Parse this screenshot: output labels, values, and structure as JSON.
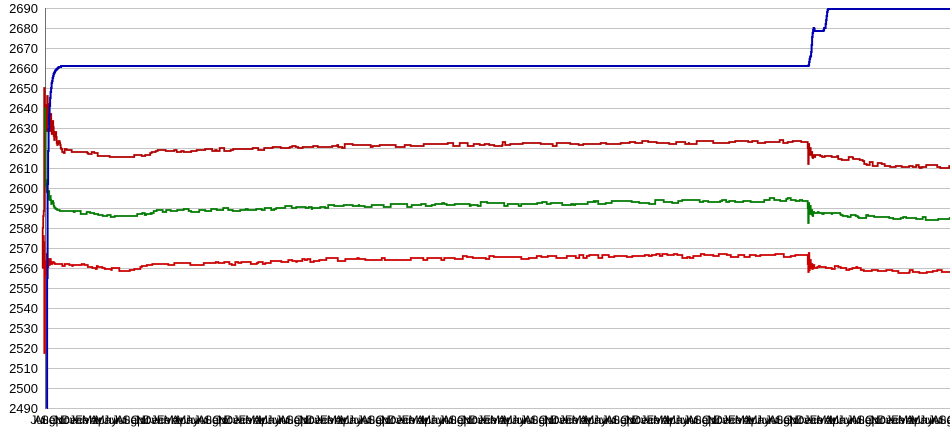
{
  "chart_data": {
    "type": "line",
    "title": "",
    "legend": "none",
    "grid": "horizontal-only",
    "grid_color": "#c4c4c4",
    "axis_color": "#707070",
    "background_color": "#ffffff",
    "y_axis": {
      "min": 2490,
      "max": 2690,
      "step": 10,
      "ticks": [
        "2490",
        "2500",
        "2510",
        "2520",
        "2530",
        "2540",
        "2550",
        "2560",
        "2570",
        "2580",
        "2590",
        "2600",
        "2610",
        "2620",
        "2630",
        "2640",
        "2650",
        "2660",
        "2670",
        "2680",
        "2690"
      ]
    },
    "x_axis": {
      "month_cycle": [
        "Jul",
        "Aug",
        "Sep",
        "Oct",
        "Nov",
        "Dec",
        "Jan",
        "Feb",
        "Mar",
        "Apr",
        "May",
        "Jun"
      ],
      "start_month": "Jul",
      "label_count": 136,
      "first_center_x": 38,
      "spacing_px": 6.8,
      "style": "densely overlapping monthly labels"
    },
    "series": [
      {
        "name": "dark-red-line",
        "color": "#b00000",
        "stroke_width": 1.8,
        "jitter": 0.9,
        "jitter_from": 62,
        "seed": 7,
        "keypoints": [
          [
            42.2,
            2560
          ],
          [
            42.35,
            2693
          ],
          [
            42.55,
            2490
          ],
          [
            42.8,
            2640
          ],
          [
            43.1,
            2545
          ],
          [
            43.4,
            2668
          ],
          [
            43.8,
            2562
          ],
          [
            44.2,
            2650
          ],
          [
            44.6,
            2585
          ],
          [
            45,
            2655
          ],
          [
            45.5,
            2615
          ],
          [
            46,
            2650
          ],
          [
            46.6,
            2625
          ],
          [
            47.2,
            2646
          ],
          [
            48,
            2628
          ],
          [
            48.8,
            2644
          ],
          [
            49.6,
            2627
          ],
          [
            50.5,
            2640
          ],
          [
            51.5,
            2626
          ],
          [
            52.8,
            2634
          ],
          [
            54,
            2623
          ],
          [
            55.5,
            2629
          ],
          [
            57,
            2621
          ],
          [
            59,
            2624
          ],
          [
            61,
            2619.5
          ],
          [
            64,
            2618.5
          ],
          [
            75,
            2618
          ],
          [
            92,
            2617.5
          ],
          [
            100,
            2616.5
          ],
          [
            112,
            2616
          ],
          [
            128,
            2616
          ],
          [
            140,
            2616.5
          ],
          [
            150,
            2617.5
          ],
          [
            158,
            2618.5
          ],
          [
            175,
            2618.5
          ],
          [
            210,
            2619
          ],
          [
            255,
            2619.5
          ],
          [
            300,
            2620
          ],
          [
            345,
            2621
          ],
          [
            400,
            2621.3
          ],
          [
            455,
            2621.7
          ],
          [
            510,
            2622
          ],
          [
            560,
            2622
          ],
          [
            618,
            2622.5
          ],
          [
            680,
            2622.5
          ],
          [
            735,
            2623
          ],
          [
            806,
            2623
          ],
          [
            807.5,
            2623
          ],
          [
            808.2,
            2612
          ],
          [
            808.8,
            2624
          ],
          [
            809.4,
            2613
          ],
          [
            810,
            2622
          ],
          [
            810.8,
            2616
          ],
          [
            811.6,
            2619
          ],
          [
            812.4,
            2615
          ],
          [
            813.5,
            2617
          ],
          [
            815,
            2615.5
          ],
          [
            818,
            2616
          ],
          [
            822,
            2615
          ],
          [
            828,
            2615.5
          ],
          [
            833,
            2614.8
          ],
          [
            838,
            2615.2
          ],
          [
            845,
            2614.5
          ],
          [
            852,
            2614.7
          ],
          [
            858,
            2614
          ],
          [
            864,
            2613
          ],
          [
            868,
            2612.2
          ],
          [
            872,
            2612
          ],
          [
            880,
            2611.8
          ],
          [
            890,
            2611.3
          ],
          [
            900,
            2611
          ],
          [
            910,
            2611.2
          ],
          [
            920,
            2610.8
          ],
          [
            935,
            2611
          ],
          [
            950,
            2610.7
          ]
        ]
      },
      {
        "name": "red-line",
        "color": "#cc0000",
        "stroke_width": 1.8,
        "jitter": 0.9,
        "jitter_from": 62,
        "seed": 23,
        "keypoints": [
          [
            43.3,
            2576
          ],
          [
            43.5,
            2490
          ],
          [
            43.8,
            2573
          ],
          [
            44.2,
            2500
          ],
          [
            44.6,
            2571
          ],
          [
            45.1,
            2548
          ],
          [
            45.6,
            2568
          ],
          [
            46.2,
            2555
          ],
          [
            46.8,
            2567
          ],
          [
            47.6,
            2559
          ],
          [
            48.4,
            2565.5
          ],
          [
            49.2,
            2561
          ],
          [
            50.2,
            2564.5
          ],
          [
            51.4,
            2561.5
          ],
          [
            53,
            2563
          ],
          [
            55,
            2562
          ],
          [
            58,
            2562
          ],
          [
            61,
            2561.8
          ],
          [
            75,
            2561.5
          ],
          [
            92,
            2561
          ],
          [
            100,
            2559.8
          ],
          [
            112,
            2559.3
          ],
          [
            128,
            2559.3
          ],
          [
            140,
            2559.8
          ],
          [
            150,
            2560.8
          ],
          [
            158,
            2561.8
          ],
          [
            175,
            2561.8
          ],
          [
            210,
            2562.2
          ],
          [
            255,
            2562.8
          ],
          [
            300,
            2563.8
          ],
          [
            345,
            2564.3
          ],
          [
            400,
            2564.7
          ],
          [
            455,
            2565
          ],
          [
            510,
            2565.3
          ],
          [
            560,
            2565.5
          ],
          [
            618,
            2566
          ],
          [
            680,
            2566
          ],
          [
            735,
            2566.3
          ],
          [
            806,
            2566.5
          ],
          [
            807.5,
            2566.5
          ],
          [
            808.2,
            2556
          ],
          [
            808.8,
            2567.5
          ],
          [
            809.4,
            2557
          ],
          [
            810,
            2566
          ],
          [
            810.8,
            2560
          ],
          [
            811.6,
            2563
          ],
          [
            812.4,
            2559
          ],
          [
            813.5,
            2561.5
          ],
          [
            815,
            2560.8
          ],
          [
            818,
            2561.3
          ],
          [
            822,
            2560.3
          ],
          [
            828,
            2560.8
          ],
          [
            833,
            2560.2
          ],
          [
            838,
            2560.5
          ],
          [
            845,
            2559.8
          ],
          [
            852,
            2560
          ],
          [
            858,
            2559.5
          ],
          [
            864,
            2559.2
          ],
          [
            868,
            2559
          ],
          [
            872,
            2558.8
          ],
          [
            880,
            2558.8
          ],
          [
            890,
            2558.5
          ],
          [
            900,
            2558.3
          ],
          [
            910,
            2558.6
          ],
          [
            920,
            2558.4
          ],
          [
            935,
            2558.7
          ],
          [
            950,
            2558.5
          ]
        ]
      },
      {
        "name": "green-line",
        "color": "#007a00",
        "stroke_width": 1.8,
        "jitter": 0.9,
        "jitter_from": 62,
        "seed": 11,
        "keypoints": [
          [
            44.7,
            2640
          ],
          [
            44.9,
            2490
          ],
          [
            45.2,
            2628
          ],
          [
            45.6,
            2600
          ],
          [
            46.1,
            2606
          ],
          [
            46.6,
            2597
          ],
          [
            47.2,
            2602
          ],
          [
            47.9,
            2595
          ],
          [
            48.6,
            2599
          ],
          [
            49.4,
            2593
          ],
          [
            50.2,
            2596
          ],
          [
            51.2,
            2592
          ],
          [
            52.4,
            2594
          ],
          [
            54,
            2590.5
          ],
          [
            56,
            2589.5
          ],
          [
            58,
            2589
          ],
          [
            61,
            2588.5
          ],
          [
            75,
            2588
          ],
          [
            92,
            2587.5
          ],
          [
            100,
            2586.5
          ],
          [
            112,
            2586
          ],
          [
            128,
            2586
          ],
          [
            140,
            2586.5
          ],
          [
            150,
            2587.5
          ],
          [
            158,
            2588.5
          ],
          [
            175,
            2588.5
          ],
          [
            210,
            2589
          ],
          [
            255,
            2589.5
          ],
          [
            300,
            2590.5
          ],
          [
            345,
            2591
          ],
          [
            400,
            2591.3
          ],
          [
            455,
            2591.8
          ],
          [
            510,
            2592
          ],
          [
            560,
            2592.2
          ],
          [
            618,
            2593
          ],
          [
            680,
            2593.2
          ],
          [
            735,
            2593.8
          ],
          [
            806,
            2594
          ],
          [
            807.5,
            2594
          ],
          [
            808.2,
            2583
          ],
          [
            808.8,
            2595
          ],
          [
            809.4,
            2584
          ],
          [
            810,
            2593
          ],
          [
            810.8,
            2587
          ],
          [
            811.6,
            2590
          ],
          [
            812.4,
            2586
          ],
          [
            813.5,
            2588
          ],
          [
            815,
            2587.5
          ],
          [
            818,
            2588
          ],
          [
            822,
            2587
          ],
          [
            828,
            2587.3
          ],
          [
            833,
            2586.8
          ],
          [
            838,
            2587
          ],
          [
            845,
            2586.3
          ],
          [
            852,
            2586.5
          ],
          [
            858,
            2586
          ],
          [
            864,
            2585.7
          ],
          [
            868,
            2585.5
          ],
          [
            872,
            2585.3
          ],
          [
            880,
            2585.2
          ],
          [
            890,
            2585
          ],
          [
            900,
            2584.8
          ],
          [
            910,
            2585
          ],
          [
            920,
            2584.8
          ],
          [
            935,
            2585
          ],
          [
            950,
            2584.8
          ]
        ]
      },
      {
        "name": "navy-line",
        "color": "#0000b0",
        "stroke_width": 2,
        "jitter": 0,
        "jitter_from": 0,
        "seed": 3,
        "keypoints": [
          [
            46.6,
            2490
          ],
          [
            47.1,
            2555
          ],
          [
            47.6,
            2602
          ],
          [
            48.3,
            2625
          ],
          [
            49.2,
            2638
          ],
          [
            50.2,
            2646
          ],
          [
            51.5,
            2652
          ],
          [
            53,
            2656
          ],
          [
            54.5,
            2658
          ],
          [
            56.5,
            2659.5
          ],
          [
            59,
            2660.5
          ],
          [
            63,
            2661
          ],
          [
            806,
            2661
          ],
          [
            808.5,
            2661
          ],
          [
            809.2,
            2663.5
          ],
          [
            810,
            2665.5
          ],
          [
            810.8,
            2666
          ],
          [
            811.4,
            2670
          ],
          [
            812.2,
            2676
          ],
          [
            812.8,
            2678.5
          ],
          [
            813.6,
            2680
          ],
          [
            814.6,
            2678.5
          ],
          [
            823.5,
            2678.5
          ],
          [
            824.3,
            2680.5
          ],
          [
            825,
            2679.5
          ],
          [
            825.8,
            2683
          ],
          [
            826.8,
            2687
          ],
          [
            827.6,
            2689
          ],
          [
            828.6,
            2689.5
          ],
          [
            950,
            2689.5
          ]
        ]
      }
    ]
  }
}
